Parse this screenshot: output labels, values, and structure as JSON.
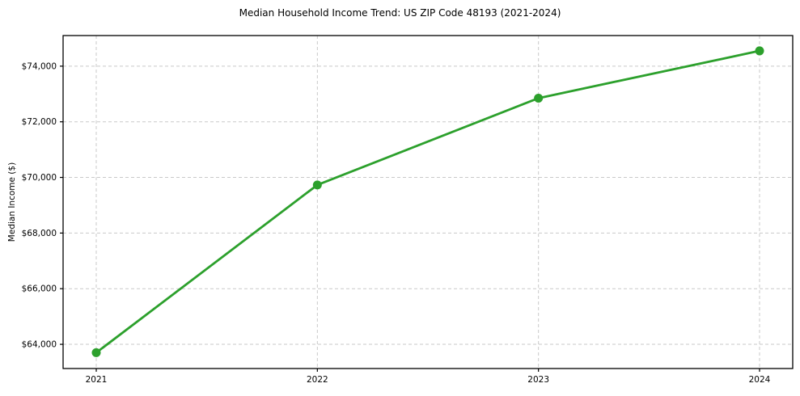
{
  "chart_data": {
    "type": "line",
    "title": "Median Household Income Trend: US ZIP Code 48193 (2021-2024)",
    "xlabel": "",
    "ylabel": "Median Income ($)",
    "x": [
      2021,
      2022,
      2023,
      2024
    ],
    "x_tick_labels": [
      "2021",
      "2022",
      "2023",
      "2024"
    ],
    "y_ticks": [
      64000,
      66000,
      68000,
      70000,
      72000,
      74000
    ],
    "y_tick_labels": [
      "$64,000",
      "$66,000",
      "$68,000",
      "$70,000",
      "$72,000",
      "$74,000"
    ],
    "series": [
      {
        "name": "Median Household Income",
        "values": [
          63700,
          69730,
          72850,
          74550
        ],
        "color": "#2ca02c",
        "marker": "circle"
      }
    ],
    "xlim": [
      2020.85,
      2024.15
    ],
    "ylim": [
      63130,
      75100
    ],
    "grid": true,
    "grid_style": "dashed",
    "grid_color": "#c9c9c9",
    "spine_color": "#000000",
    "tick_color": "#000000",
    "background_color": "#ffffff",
    "legend": false
  }
}
